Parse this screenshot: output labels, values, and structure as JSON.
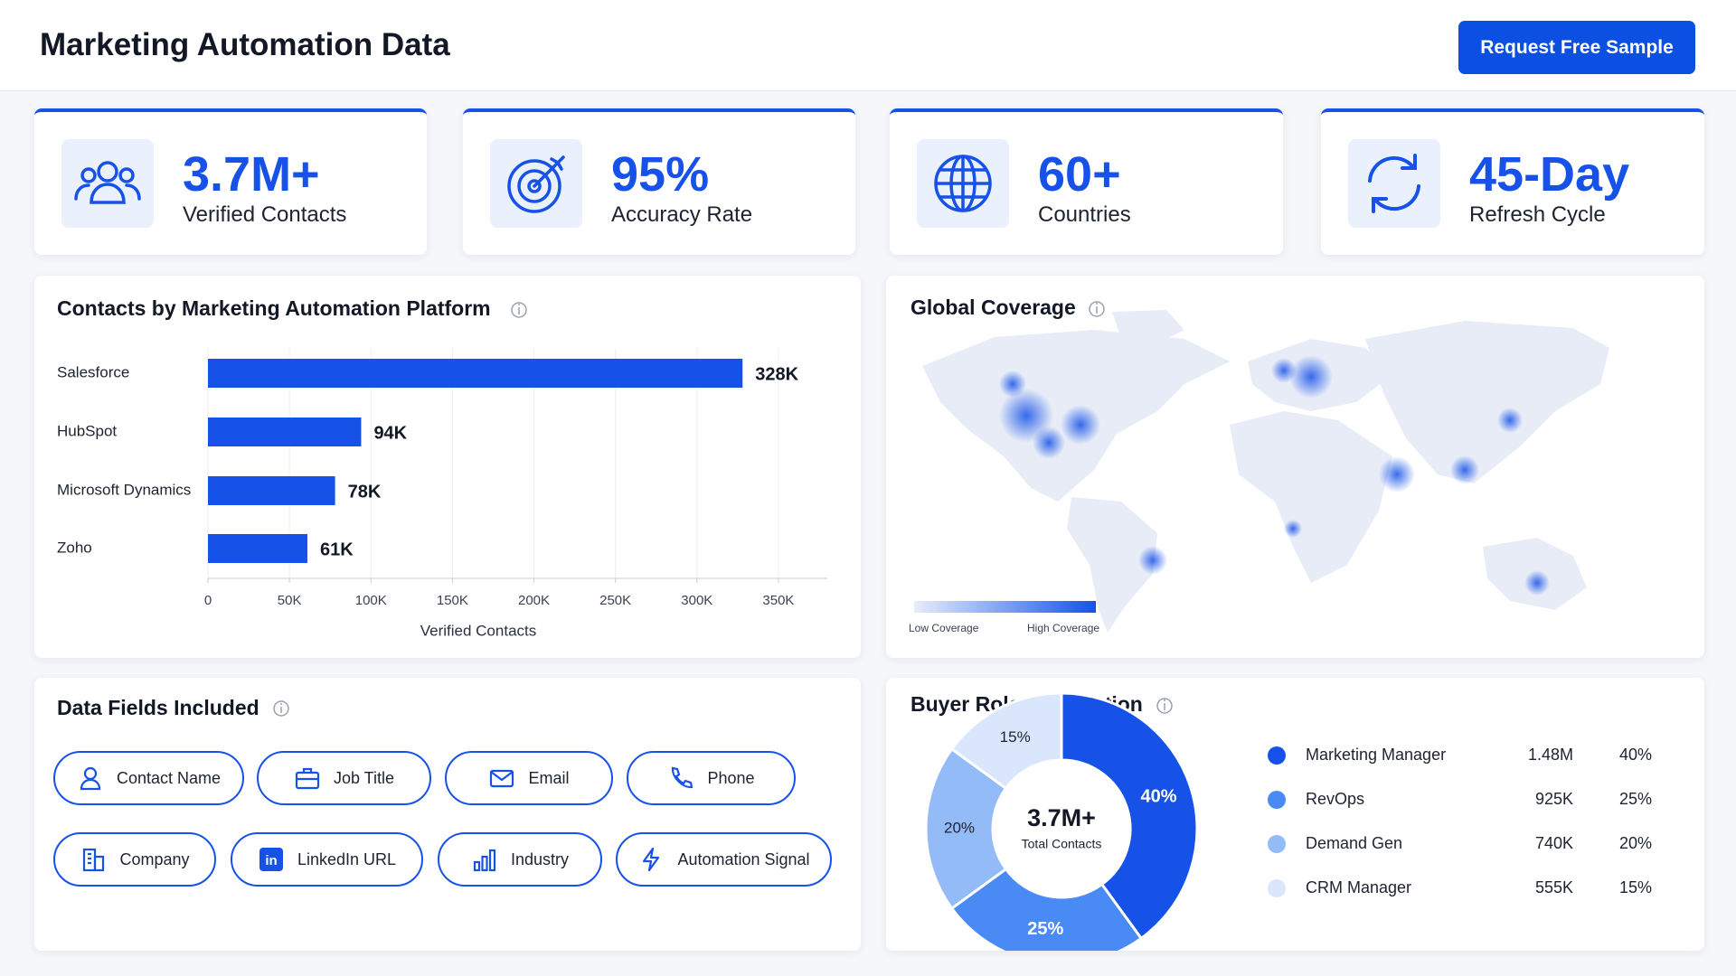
{
  "header": {
    "title": "Marketing Automation Data",
    "button": "Request Free Sample"
  },
  "stats": [
    {
      "value": "3.7M+",
      "label": "Verified Contacts"
    },
    {
      "value": "95%",
      "label": "Accuracy Rate"
    },
    {
      "value": "60+",
      "label": "Countries"
    },
    {
      "value": "45-Day",
      "label": "Refresh Cycle"
    }
  ],
  "chart_data": [
    {
      "type": "bar",
      "orientation": "horizontal",
      "title": "Contacts by Marketing Automation Platform",
      "categories": [
        "Salesforce",
        "HubSpot",
        "Microsoft Dynamics",
        "Zoho"
      ],
      "values": [
        328000,
        94000,
        78000,
        61000
      ],
      "value_labels": [
        "328K",
        "94K",
        "78K",
        "61K"
      ],
      "color": "#1652e8",
      "xlabel": "Verified Contacts",
      "xlim": [
        0,
        380000
      ],
      "xticks": [
        0,
        {
          "value": 50000,
          "label": "50K"
        },
        {
          "value": 100000,
          "label": "100K"
        },
        {
          "value": 150000,
          "label": "150K"
        },
        {
          "value": 200000,
          "label": "200K"
        },
        {
          "value": 250000,
          "label": "250K"
        },
        {
          "value": 300000,
          "label": "300K"
        },
        {
          "value": 350000,
          "label": "350K"
        }
      ],
      "grid": true
    },
    {
      "type": "pie",
      "title": "Buyer Role Distribution",
      "categories": [
        "Marketing Manager",
        "RevOps",
        "Demand Gen",
        "CRM Manager"
      ],
      "values": [
        40,
        25,
        20,
        15
      ],
      "value_labels": [
        "40%",
        "25%",
        "20%",
        "15%"
      ],
      "counts": [
        1480000,
        925000,
        740000,
        555000
      ],
      "count_labels": [
        "1.48M",
        "925K",
        "740K",
        "555K"
      ],
      "colors": [
        "#1652e8",
        "#4a8af5",
        "#93bbf8",
        "#d9e6fc"
      ],
      "center_value": "3.7M+",
      "center_label": "Total Contacts"
    }
  ],
  "map": {
    "title": "Global Coverage",
    "legend_low": "Low Coverage",
    "legend_high": "High Coverage"
  },
  "data_fields": {
    "title": "Data Fields Included",
    "items": [
      "Contact Name",
      "Job Title",
      "Email",
      "Phone",
      "Company",
      "LinkedIn URL",
      "Industry",
      "Automation Signal"
    ]
  }
}
